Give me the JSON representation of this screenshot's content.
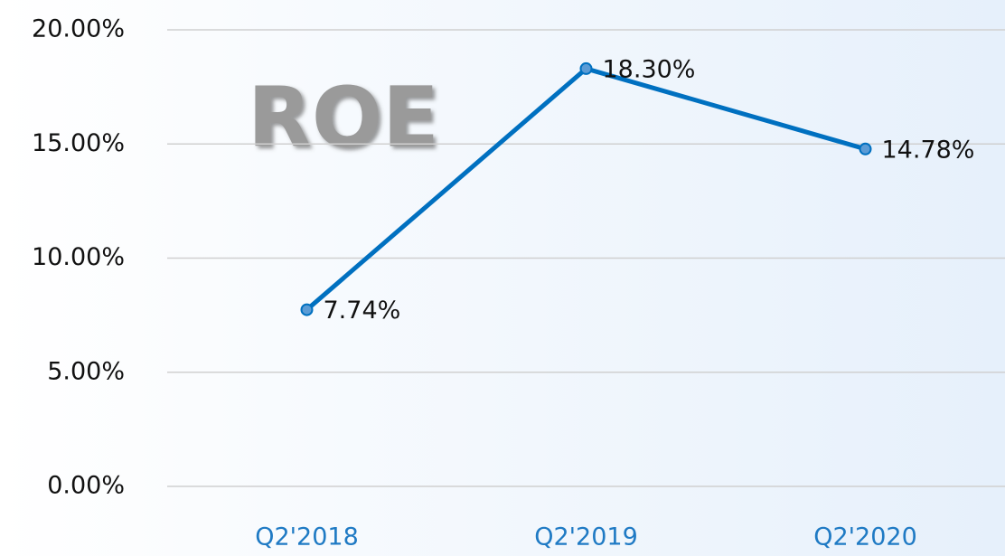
{
  "chart_data": {
    "type": "line",
    "title": "ROE",
    "categories": [
      "Q2'2018",
      "Q2'2019",
      "Q2'2020"
    ],
    "series": [
      {
        "name": "ROE",
        "color": "#0070c0",
        "values": [
          7.74,
          18.3,
          14.78
        ],
        "value_labels": [
          "7.74%",
          "18.30%",
          "14.78%"
        ]
      }
    ],
    "ylim": [
      0,
      20
    ],
    "yticks": [
      {
        "value": 0,
        "label": "0.00%"
      },
      {
        "value": 5,
        "label": "5.00%"
      },
      {
        "value": 10,
        "label": "10.00%"
      },
      {
        "value": 15,
        "label": "15.00%"
      },
      {
        "value": 20,
        "label": "20.00%"
      }
    ],
    "grid": true
  }
}
